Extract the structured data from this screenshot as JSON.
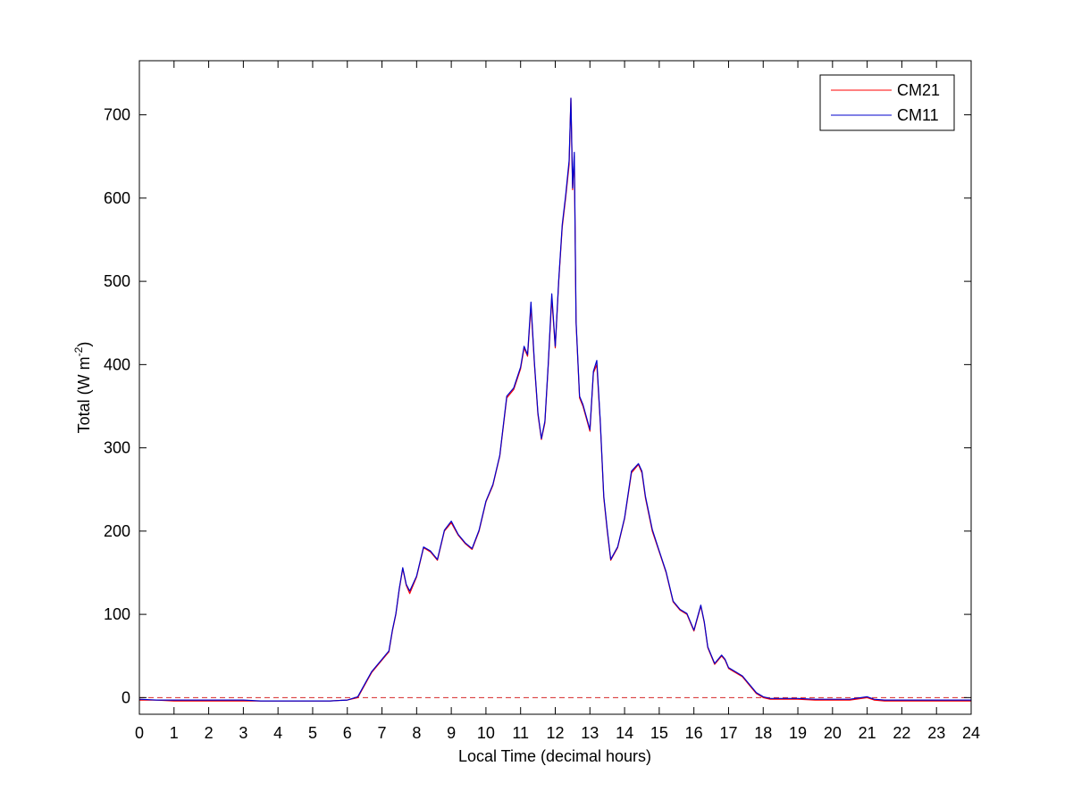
{
  "chart_data": {
    "type": "line",
    "xlabel": "Local Time (decimal hours)",
    "ylabel_main": "Total (W m",
    "ylabel_sup": "-2",
    "ylabel_close": ")",
    "xlim": [
      0,
      24
    ],
    "ylim": [
      -20,
      765
    ],
    "xticks": [
      0,
      1,
      2,
      3,
      4,
      5,
      6,
      7,
      8,
      9,
      10,
      11,
      12,
      13,
      14,
      15,
      16,
      17,
      18,
      19,
      20,
      21,
      22,
      23,
      24
    ],
    "yticks": [
      0,
      100,
      200,
      300,
      400,
      500,
      600,
      700
    ],
    "grid": false,
    "legend_position": "top-right",
    "reference_line": {
      "y": 0,
      "style": "dashed",
      "color": "#d62728"
    },
    "series": [
      {
        "name": "CM21",
        "color": "#ff0000",
        "x": [
          0,
          0.5,
          1,
          1.5,
          2,
          2.5,
          3,
          3.5,
          4,
          4.5,
          5,
          5.5,
          6,
          6.3,
          6.5,
          6.7,
          7,
          7.1,
          7.2,
          7.3,
          7.4,
          7.5,
          7.6,
          7.7,
          7.8,
          8,
          8.2,
          8.4,
          8.6,
          8.8,
          9,
          9.2,
          9.4,
          9.6,
          9.8,
          10,
          10.2,
          10.4,
          10.6,
          10.8,
          11,
          11.1,
          11.2,
          11.3,
          11.4,
          11.5,
          11.6,
          11.7,
          11.8,
          11.9,
          12,
          12.1,
          12.2,
          12.3,
          12.4,
          12.45,
          12.5,
          12.55,
          12.6,
          12.7,
          12.8,
          13,
          13.1,
          13.2,
          13.3,
          13.4,
          13.5,
          13.6,
          13.8,
          14,
          14.2,
          14.4,
          14.5,
          14.6,
          14.8,
          15,
          15.2,
          15.4,
          15.6,
          15.8,
          16,
          16.2,
          16.3,
          16.4,
          16.6,
          16.8,
          16.9,
          17,
          17.2,
          17.4,
          17.6,
          17.8,
          18,
          18.2,
          18.5,
          19,
          19.5,
          20,
          20.5,
          21,
          21.2,
          21.5,
          22,
          22.5,
          23,
          23.5,
          24
        ],
        "y": [
          -3,
          -3,
          -4,
          -4,
          -4,
          -4,
          -4,
          -4,
          -4,
          -4,
          -4,
          -4,
          -3,
          0,
          15,
          30,
          45,
          50,
          55,
          80,
          100,
          130,
          155,
          135,
          125,
          145,
          180,
          175,
          165,
          200,
          210,
          195,
          185,
          178,
          200,
          235,
          255,
          290,
          360,
          370,
          395,
          420,
          410,
          470,
          400,
          340,
          310,
          330,
          400,
          480,
          420,
          500,
          565,
          600,
          640,
          720,
          610,
          650,
          450,
          360,
          350,
          320,
          390,
          400,
          330,
          240,
          200,
          165,
          180,
          215,
          270,
          280,
          270,
          240,
          200,
          175,
          150,
          115,
          105,
          100,
          80,
          110,
          90,
          60,
          40,
          50,
          45,
          35,
          30,
          25,
          15,
          5,
          0,
          -2,
          -2,
          -2,
          -3,
          -3,
          -3,
          0,
          -3,
          -4,
          -4,
          -4,
          -4,
          -4,
          -4
        ]
      },
      {
        "name": "CM11",
        "color": "#0000cc",
        "x": [
          0,
          0.5,
          1,
          1.5,
          2,
          2.5,
          3,
          3.5,
          4,
          4.5,
          5,
          5.5,
          6,
          6.3,
          6.5,
          6.7,
          7,
          7.1,
          7.2,
          7.3,
          7.4,
          7.5,
          7.6,
          7.7,
          7.8,
          8,
          8.2,
          8.4,
          8.6,
          8.8,
          9,
          9.2,
          9.4,
          9.6,
          9.8,
          10,
          10.2,
          10.4,
          10.6,
          10.8,
          11,
          11.1,
          11.2,
          11.3,
          11.4,
          11.5,
          11.6,
          11.7,
          11.8,
          11.9,
          12,
          12.1,
          12.2,
          12.3,
          12.4,
          12.45,
          12.5,
          12.55,
          12.6,
          12.7,
          12.8,
          13,
          13.1,
          13.2,
          13.3,
          13.4,
          13.5,
          13.6,
          13.8,
          14,
          14.2,
          14.4,
          14.5,
          14.6,
          14.8,
          15,
          15.2,
          15.4,
          15.6,
          15.8,
          16,
          16.2,
          16.3,
          16.4,
          16.6,
          16.8,
          16.9,
          17,
          17.2,
          17.4,
          17.6,
          17.8,
          18,
          18.2,
          18.5,
          19,
          19.5,
          20,
          20.5,
          21,
          21.2,
          21.5,
          22,
          22.5,
          23,
          23.5,
          24
        ],
        "y": [
          -2,
          -3,
          -3,
          -3,
          -3,
          -3,
          -3,
          -4,
          -4,
          -4,
          -4,
          -4,
          -3,
          1,
          16,
          31,
          46,
          51,
          56,
          81,
          101,
          131,
          156,
          136,
          128,
          146,
          181,
          176,
          166,
          201,
          212,
          196,
          186,
          179,
          201,
          236,
          256,
          291,
          362,
          372,
          397,
          422,
          412,
          475,
          402,
          342,
          311,
          332,
          402,
          485,
          422,
          502,
          568,
          603,
          645,
          720,
          612,
          655,
          452,
          362,
          352,
          322,
          392,
          405,
          332,
          242,
          202,
          166,
          181,
          216,
          272,
          281,
          272,
          242,
          202,
          176,
          151,
          116,
          106,
          101,
          81,
          111,
          91,
          61,
          41,
          51,
          46,
          36,
          31,
          26,
          16,
          6,
          1,
          -1,
          -1,
          -1,
          -2,
          -2,
          -2,
          1,
          -2,
          -3,
          -3,
          -3,
          -3,
          -3,
          -3
        ]
      }
    ]
  }
}
